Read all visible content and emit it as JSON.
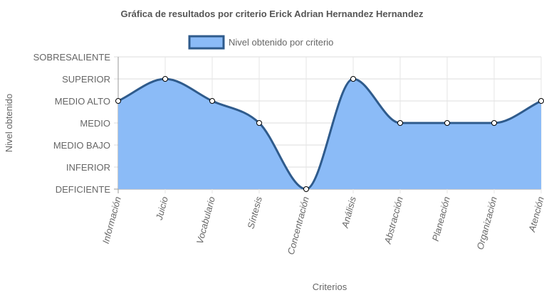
{
  "chart_data": {
    "type": "area",
    "title": "Gráfica de resultados por criterio Erick Adrian Hernandez Hernandez",
    "xlabel": "Criterios",
    "ylabel": "Nivel obtenido",
    "categories": [
      "Información",
      "Juicio",
      "Vocabulario",
      "Síntesis",
      "Concentración",
      "Análisis",
      "Abstracción",
      "Planeación",
      "Organización",
      "Atención"
    ],
    "y_levels": [
      "DEFICIENTE",
      "INFERIOR",
      "MEDIO BAJO",
      "MEDIO",
      "MEDIO ALTO",
      "SUPERIOR",
      "SOBRESALIENTE"
    ],
    "ylim": [
      0,
      6
    ],
    "series": [
      {
        "name": "Nivel obtenido por criterio",
        "values": [
          4,
          5,
          4,
          3,
          0,
          5,
          3,
          3,
          3,
          4
        ],
        "fill_color": "#8BBBF7",
        "line_color": "#2F5B8C"
      }
    ],
    "legend_position": "top-center",
    "grid": true
  }
}
